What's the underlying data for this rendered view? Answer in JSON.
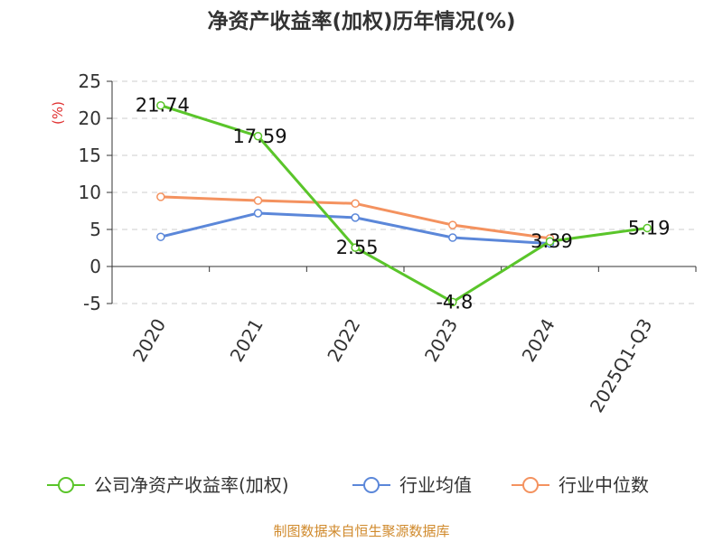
{
  "chart_data": {
    "type": "line",
    "title": "净资产收益率(加权)历年情况(%)",
    "ylabel": "(%)",
    "categories": [
      "2020",
      "2021",
      "2022",
      "2023",
      "2024",
      "2025Q1-Q3"
    ],
    "ylim": [
      -5,
      25
    ],
    "yticks": [
      -5,
      0,
      5,
      10,
      15,
      20,
      25
    ],
    "grid": true,
    "legend_position": "bottom",
    "series": [
      {
        "name": "公司净资产收益率(加权)",
        "color": "#5ac52a",
        "values": [
          21.74,
          17.59,
          2.55,
          -4.8,
          3.39,
          5.19
        ],
        "labels": [
          "21.74",
          "17.59",
          "2.55",
          "-4.8",
          "3.39",
          "5.19"
        ]
      },
      {
        "name": "行业均值",
        "color": "#5b87d9",
        "values": [
          4.0,
          7.2,
          6.6,
          3.9,
          3.1,
          null
        ]
      },
      {
        "name": "行业中位数",
        "color": "#f4925f",
        "values": [
          9.4,
          8.9,
          8.5,
          5.6,
          3.8,
          null
        ]
      }
    ]
  },
  "colors": {
    "unit": "#e03030",
    "source": "#d08a2c",
    "axis": "#333333",
    "grid": "#cccccc"
  },
  "source": "制图数据来自恒生聚源数据库"
}
